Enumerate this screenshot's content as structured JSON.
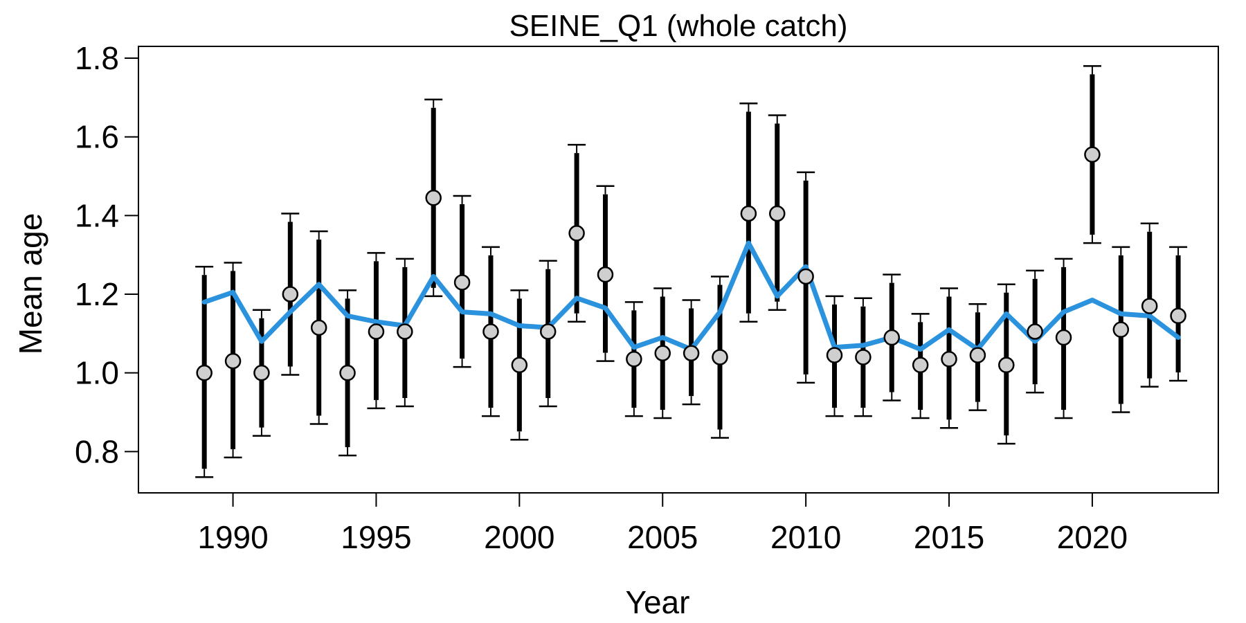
{
  "chart_data": {
    "type": "line",
    "title": "SEINE_Q1 (whole catch)",
    "xlabel": "Year",
    "ylabel": "Mean age",
    "xlim": [
      1986.7,
      2024.4
    ],
    "ylim": [
      0.695,
      1.83
    ],
    "xticks": [
      1990,
      1995,
      2000,
      2005,
      2010,
      2015,
      2020
    ],
    "yticks": [
      0.8,
      1.0,
      1.2,
      1.4,
      1.6,
      1.8
    ],
    "ytick_labels": [
      "0.8",
      "1.0",
      "1.2",
      "1.4",
      "1.6",
      "1.8"
    ],
    "grid": false,
    "colors": {
      "fitted": "#2b93de",
      "observed_fill": "#cfcfcf",
      "error_bar": "#000000"
    },
    "x": [
      1989,
      1990,
      1991,
      1992,
      1993,
      1994,
      1995,
      1996,
      1997,
      1998,
      1999,
      2000,
      2001,
      2002,
      2003,
      2004,
      2005,
      2006,
      2007,
      2008,
      2009,
      2010,
      2011,
      2012,
      2013,
      2014,
      2015,
      2016,
      2017,
      2018,
      2019,
      2020,
      2021,
      2022,
      2023
    ],
    "series": [
      {
        "kind": "observed",
        "values": [
          1.0,
          1.03,
          1.0,
          1.2,
          1.115,
          1.0,
          1.105,
          1.105,
          1.445,
          1.23,
          1.105,
          1.02,
          1.105,
          1.355,
          1.25,
          1.035,
          1.05,
          1.05,
          1.04,
          1.405,
          1.405,
          1.245,
          1.045,
          1.04,
          1.09,
          1.02,
          1.035,
          1.045,
          1.02,
          1.105,
          1.09,
          1.555,
          1.11,
          1.17,
          1.145
        ],
        "lower": [
          0.735,
          0.785,
          0.84,
          0.995,
          0.87,
          0.79,
          0.91,
          0.915,
          1.195,
          1.015,
          0.89,
          0.83,
          0.915,
          1.13,
          1.03,
          0.89,
          0.885,
          0.92,
          0.835,
          1.13,
          1.16,
          0.975,
          0.89,
          0.89,
          0.93,
          0.885,
          0.86,
          0.905,
          0.82,
          0.95,
          0.885,
          1.33,
          0.9,
          0.965,
          0.98
        ],
        "upper": [
          1.27,
          1.28,
          1.16,
          1.405,
          1.36,
          1.21,
          1.305,
          1.29,
          1.695,
          1.45,
          1.32,
          1.21,
          1.285,
          1.58,
          1.475,
          1.18,
          1.215,
          1.185,
          1.245,
          1.685,
          1.655,
          1.51,
          1.195,
          1.19,
          1.25,
          1.15,
          1.215,
          1.175,
          1.225,
          1.26,
          1.29,
          1.78,
          1.32,
          1.38,
          1.32
        ]
      },
      {
        "kind": "fitted",
        "values": [
          1.18,
          1.205,
          1.08,
          1.155,
          1.225,
          1.145,
          1.13,
          1.12,
          1.245,
          1.155,
          1.15,
          1.12,
          1.115,
          1.19,
          1.165,
          1.065,
          1.09,
          1.06,
          1.155,
          1.33,
          1.195,
          1.27,
          1.065,
          1.07,
          1.09,
          1.06,
          1.11,
          1.06,
          1.15,
          1.08,
          1.155,
          1.185,
          1.15,
          1.145,
          1.09
        ]
      }
    ]
  }
}
